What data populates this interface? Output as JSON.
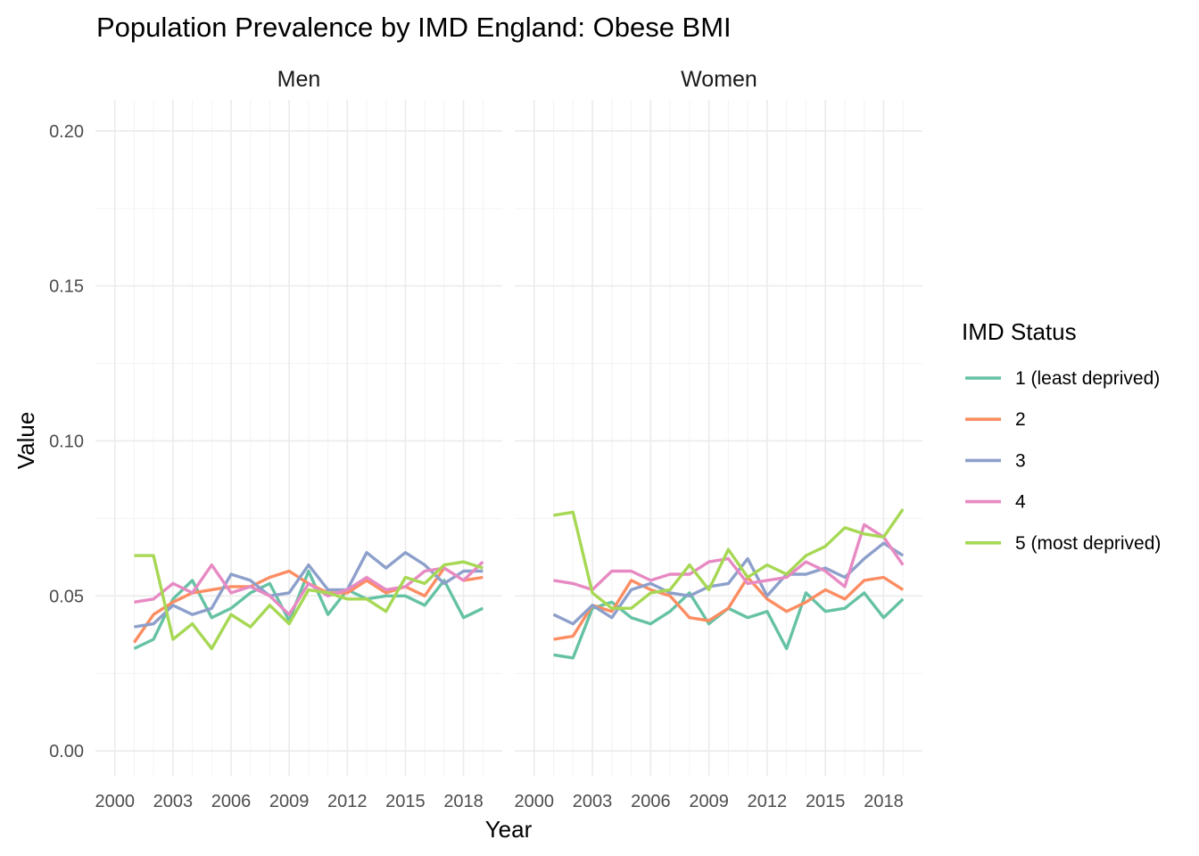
{
  "chart_data": {
    "type": "line",
    "title": "Population Prevalence by IMD England: Obese BMI",
    "xlabel": "Year",
    "ylabel": "Value",
    "xlim": [
      1999,
      2020
    ],
    "ylim": [
      -0.008,
      0.21
    ],
    "x_ticks": [
      2000,
      2003,
      2006,
      2009,
      2012,
      2015,
      2018
    ],
    "x_tick_labels": [
      "2000",
      "2003",
      "2006",
      "2009",
      "2012",
      "2015",
      "2018"
    ],
    "y_ticks": [
      0.0,
      0.05,
      0.1,
      0.15,
      0.2
    ],
    "y_tick_labels": [
      "0.00",
      "0.05",
      "0.10",
      "0.15",
      "0.20"
    ],
    "grid": true,
    "legend": {
      "title": "IMD Status",
      "placement": "right",
      "entries": [
        "1 (least deprived)",
        "2",
        "3",
        "4",
        "5 (most deprived)"
      ]
    },
    "x": [
      2001,
      2002,
      2003,
      2004,
      2005,
      2006,
      2007,
      2008,
      2009,
      2010,
      2011,
      2012,
      2013,
      2014,
      2015,
      2016,
      2017,
      2018,
      2019
    ],
    "panels": [
      {
        "label": "Men",
        "series": [
          {
            "name": "1 (least deprived)",
            "color": "#66C2A5",
            "values": [
              0.033,
              0.036,
              0.049,
              0.055,
              0.043,
              0.046,
              0.051,
              0.054,
              0.042,
              0.058,
              0.044,
              0.052,
              0.049,
              0.05,
              0.05,
              0.047,
              0.055,
              0.043,
              0.046
            ]
          },
          {
            "name": "2",
            "color": "#FC8D62",
            "values": [
              0.035,
              0.044,
              0.048,
              0.051,
              0.052,
              0.053,
              0.053,
              0.056,
              0.058,
              0.054,
              0.051,
              0.051,
              0.055,
              0.051,
              0.053,
              0.05,
              0.059,
              0.055,
              0.056
            ]
          },
          {
            "name": "3",
            "color": "#8DA0CB",
            "values": [
              0.04,
              0.041,
              0.047,
              0.044,
              0.046,
              0.057,
              0.055,
              0.05,
              0.051,
              0.06,
              0.052,
              0.052,
              0.064,
              0.059,
              0.064,
              0.06,
              0.054,
              0.058,
              0.058
            ]
          },
          {
            "name": "4",
            "color": "#E78AC3",
            "values": [
              0.048,
              0.049,
              0.054,
              0.051,
              0.06,
              0.051,
              0.053,
              0.05,
              0.044,
              0.054,
              0.05,
              0.052,
              0.056,
              0.052,
              0.053,
              0.058,
              0.059,
              0.055,
              0.061
            ]
          },
          {
            "name": "5 (most deprived)",
            "color": "#A6D854",
            "values": [
              0.063,
              0.063,
              0.036,
              0.041,
              0.033,
              0.044,
              0.04,
              0.047,
              0.041,
              0.052,
              0.051,
              0.049,
              0.049,
              0.045,
              0.056,
              0.054,
              0.06,
              0.061,
              0.059
            ]
          }
        ]
      },
      {
        "label": "Women",
        "series": [
          {
            "name": "1 (least deprived)",
            "color": "#66C2A5",
            "values": [
              0.031,
              0.03,
              0.046,
              0.048,
              0.043,
              0.041,
              0.045,
              0.051,
              0.041,
              0.046,
              0.043,
              0.045,
              0.033,
              0.051,
              0.045,
              0.046,
              0.051,
              0.043,
              0.049
            ]
          },
          {
            "name": "2",
            "color": "#FC8D62",
            "values": [
              0.036,
              0.037,
              0.047,
              0.045,
              0.055,
              0.052,
              0.05,
              0.043,
              0.042,
              0.046,
              0.056,
              0.049,
              0.045,
              0.048,
              0.052,
              0.049,
              0.055,
              0.056,
              0.052
            ]
          },
          {
            "name": "3",
            "color": "#8DA0CB",
            "values": [
              0.044,
              0.041,
              0.047,
              0.043,
              0.052,
              0.054,
              0.051,
              0.05,
              0.053,
              0.054,
              0.062,
              0.05,
              0.057,
              0.057,
              0.059,
              0.056,
              0.062,
              0.067,
              0.063
            ]
          },
          {
            "name": "4",
            "color": "#E78AC3",
            "values": [
              0.055,
              0.054,
              0.052,
              0.058,
              0.058,
              0.055,
              0.057,
              0.057,
              0.061,
              0.062,
              0.054,
              0.055,
              0.056,
              0.061,
              0.058,
              0.053,
              0.073,
              0.069,
              0.06
            ]
          },
          {
            "name": "5 (most deprived)",
            "color": "#A6D854",
            "values": [
              0.076,
              0.077,
              0.051,
              0.046,
              0.046,
              0.051,
              0.052,
              0.06,
              0.052,
              0.065,
              0.056,
              0.06,
              0.057,
              0.063,
              0.066,
              0.072,
              0.07,
              0.069,
              0.078
            ]
          }
        ]
      }
    ]
  }
}
